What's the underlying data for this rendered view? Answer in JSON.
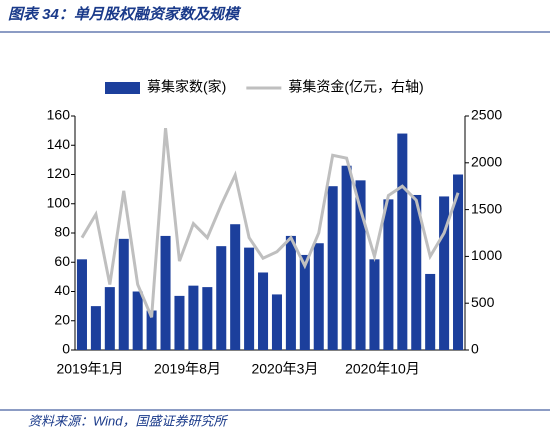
{
  "header": {
    "title": "图表 34：单月股权融资家数及规模"
  },
  "chart_data": {
    "type": "bar-line",
    "categories": [
      "2019年1月",
      null,
      null,
      null,
      null,
      null,
      null,
      "2019年8月",
      null,
      null,
      null,
      null,
      null,
      null,
      "2020年3月",
      null,
      null,
      null,
      null,
      null,
      null,
      "2020年10月",
      null,
      null,
      null,
      null,
      null,
      null
    ],
    "series": [
      {
        "name": "募集家数(家)",
        "type": "bar",
        "color": "#1c3f9c",
        "values": [
          62,
          30,
          43,
          76,
          40,
          27,
          78,
          37,
          44,
          43,
          71,
          86,
          70,
          53,
          38,
          78,
          65,
          73,
          112,
          126,
          116,
          62,
          103,
          148,
          106,
          52,
          105,
          120
        ]
      },
      {
        "name": "募集资金(亿元，右轴)",
        "type": "line",
        "axis": "y2",
        "color": "#bfbfbf",
        "values": [
          1200,
          1450,
          700,
          1700,
          700,
          350,
          2370,
          950,
          1350,
          1200,
          1550,
          1870,
          1200,
          980,
          1050,
          1200,
          900,
          1250,
          2080,
          2050,
          1500,
          1000,
          1650,
          1750,
          1600,
          1000,
          1250,
          1680
        ]
      }
    ],
    "ylim": [
      0,
      160
    ],
    "yticks": [
      0,
      20,
      40,
      60,
      80,
      100,
      120,
      140,
      160
    ],
    "y2lim": [
      0,
      2500
    ],
    "y2ticks": [
      0,
      500,
      1000,
      1500,
      2000,
      2500
    ]
  },
  "footer": {
    "source": "资料来源：Wind，国盛证券研究所"
  }
}
